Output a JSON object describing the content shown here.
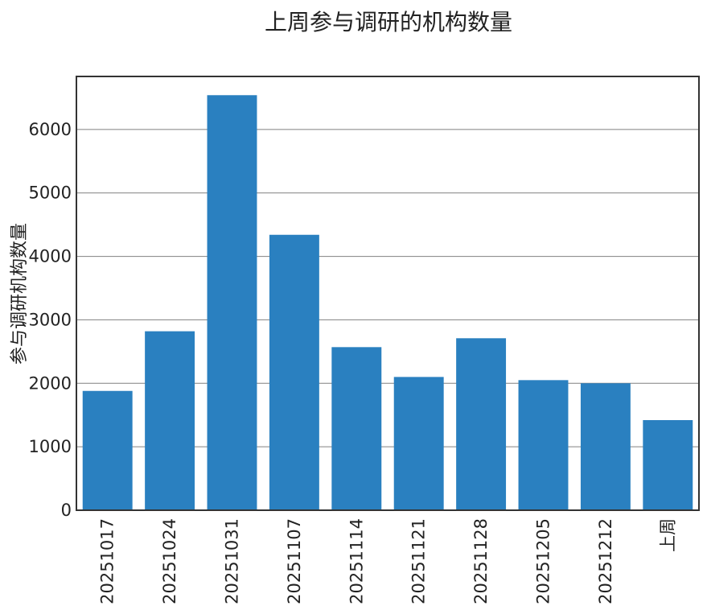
{
  "colors": {
    "bar": "#2a80c0",
    "grid": "#808080",
    "axis": "#333333",
    "text": "#222222"
  },
  "chart_data": {
    "type": "bar",
    "title": "上周参与调研的机构数量",
    "xlabel": "",
    "ylabel": "参与调研机构数量",
    "categories": [
      "20251017",
      "20251024",
      "20251031",
      "20251107",
      "20251114",
      "20251121",
      "20251128",
      "20251205",
      "20251212",
      "上周"
    ],
    "values": [
      1880,
      2820,
      6540,
      4340,
      2570,
      2100,
      2710,
      2050,
      2000,
      1420
    ],
    "ylim": [
      0,
      6835
    ],
    "yticks": [
      0,
      1000,
      2000,
      3000,
      4000,
      5000,
      6000
    ],
    "grid": "y",
    "legend": "none"
  }
}
